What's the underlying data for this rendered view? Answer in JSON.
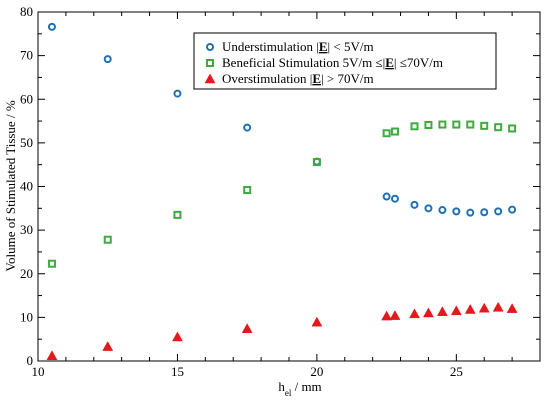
{
  "chart_data": {
    "type": "scatter",
    "title": "",
    "xlabel": {
      "main": "h",
      "sub": "el",
      "rest": " / mm"
    },
    "ylabel": "Volume of Stimulated Tissue / %",
    "xlim": [
      10,
      28
    ],
    "ylim": [
      0,
      80
    ],
    "xticks": [
      10,
      15,
      20,
      25
    ],
    "yticks": [
      0,
      10,
      20,
      30,
      40,
      50,
      60,
      70,
      80
    ],
    "grid": false,
    "legend_position": "top-right",
    "series": [
      {
        "name_parts": [
          "Understimulation |",
          "E",
          "| < 5V/m"
        ],
        "marker": "circle",
        "color": "#1f6fb4",
        "points": [
          [
            10.5,
            76.6
          ],
          [
            12.5,
            69.2
          ],
          [
            15,
            61.3
          ],
          [
            17.5,
            53.5
          ],
          [
            20,
            45.7
          ],
          [
            22.5,
            37.7
          ],
          [
            22.8,
            37.2
          ],
          [
            23.5,
            35.8
          ],
          [
            24,
            35.0
          ],
          [
            24.5,
            34.6
          ],
          [
            25,
            34.3
          ],
          [
            25.5,
            34.0
          ],
          [
            26,
            34.1
          ],
          [
            26.5,
            34.3
          ],
          [
            27,
            34.7
          ]
        ]
      },
      {
        "name_parts": [
          "Beneficial Stimulation 5V/m ≤|",
          "E",
          "| ≤70V/m"
        ],
        "marker": "square",
        "color": "#3fab3f",
        "points": [
          [
            10.5,
            22.3
          ],
          [
            12.5,
            27.8
          ],
          [
            15,
            33.5
          ],
          [
            17.5,
            39.2
          ],
          [
            20,
            45.6
          ],
          [
            22.5,
            52.2
          ],
          [
            22.8,
            52.6
          ],
          [
            23.5,
            53.8
          ],
          [
            24,
            54.1
          ],
          [
            24.5,
            54.2
          ],
          [
            25,
            54.2
          ],
          [
            25.5,
            54.2
          ],
          [
            26,
            53.9
          ],
          [
            26.5,
            53.6
          ],
          [
            27,
            53.3
          ]
        ]
      },
      {
        "name_parts": [
          "Overstimulation |",
          "E",
          "| > 70V/m"
        ],
        "marker": "triangle",
        "color": "#e31a1c",
        "points": [
          [
            10.5,
            1.2
          ],
          [
            12.5,
            3.3
          ],
          [
            15,
            5.5
          ],
          [
            17.5,
            7.4
          ],
          [
            20,
            8.9
          ],
          [
            22.5,
            10.3
          ],
          [
            22.8,
            10.4
          ],
          [
            23.5,
            10.8
          ],
          [
            24,
            11.0
          ],
          [
            24.5,
            11.3
          ],
          [
            25,
            11.5
          ],
          [
            25.5,
            11.8
          ],
          [
            26,
            12.1
          ],
          [
            26.5,
            12.3
          ],
          [
            27,
            12.0
          ]
        ]
      }
    ]
  }
}
